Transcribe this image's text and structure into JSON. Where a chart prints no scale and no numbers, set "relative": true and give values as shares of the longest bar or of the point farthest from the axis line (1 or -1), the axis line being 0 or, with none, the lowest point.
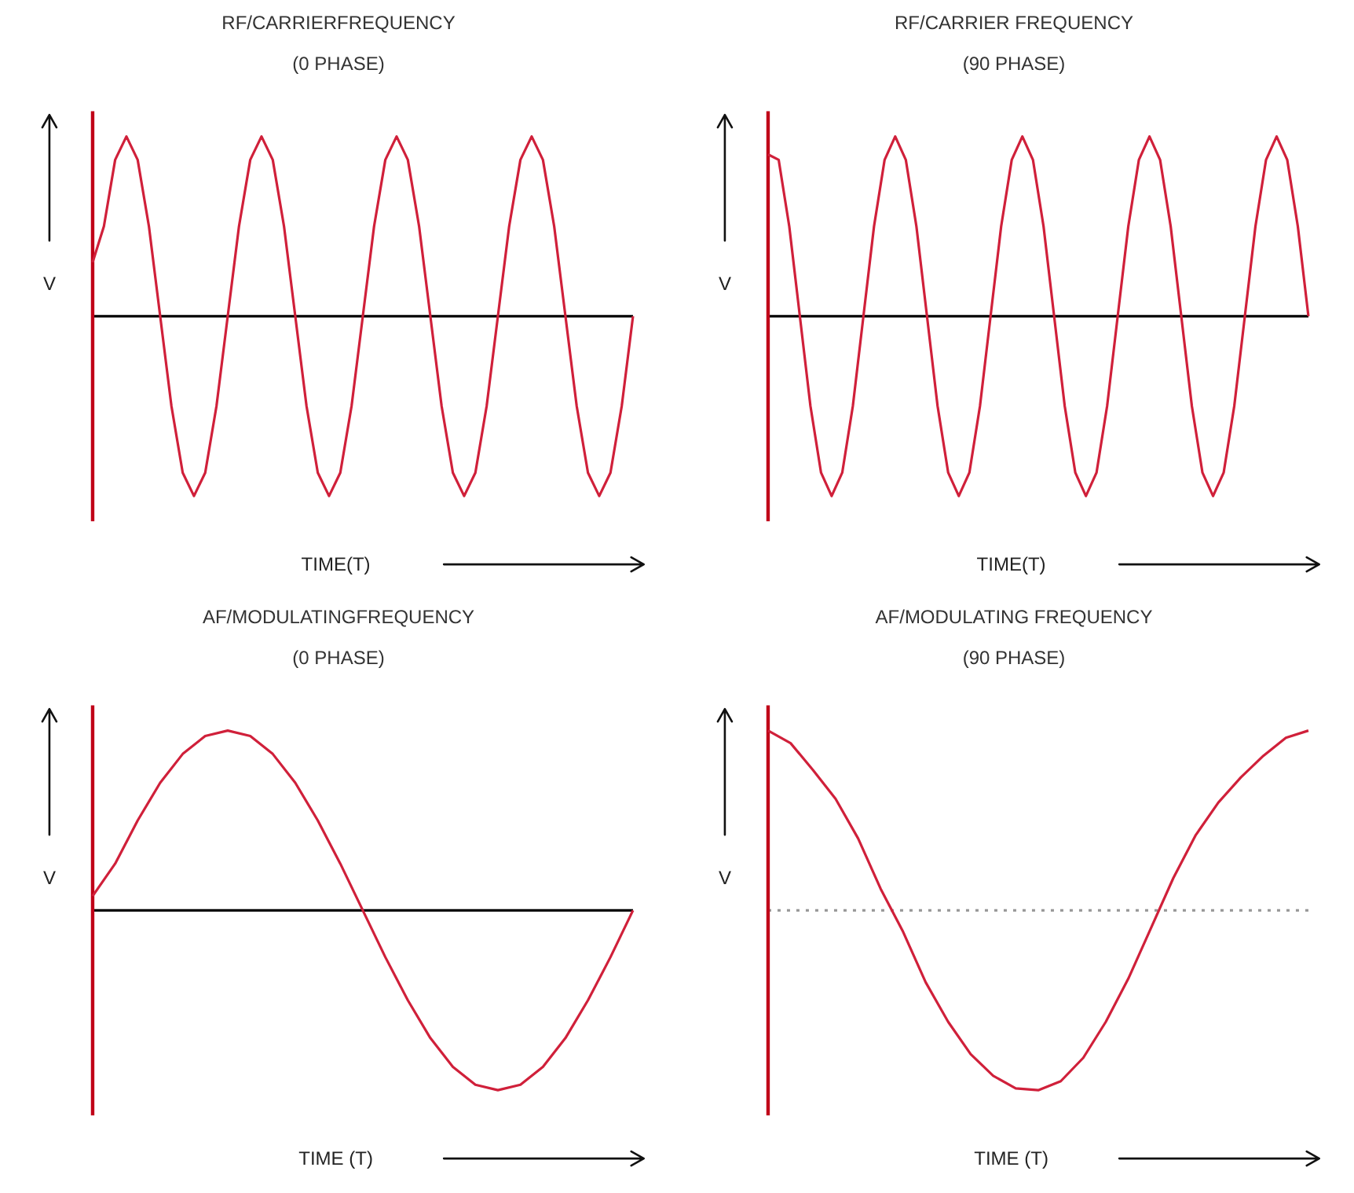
{
  "chart_data": [
    {
      "type": "line",
      "title": "RF/CARRIERFREQUENCY",
      "subtitle": "(0 PHASE)",
      "xlabel": "TIME(T)",
      "ylabel": "V",
      "relative": true,
      "categories": [
        null,
        null,
        null,
        null,
        null,
        null,
        null,
        null,
        null,
        null,
        null,
        null,
        null,
        null,
        null,
        null,
        null,
        null,
        null,
        null,
        null,
        null,
        null,
        null,
        null,
        null,
        null,
        null,
        null,
        null,
        null,
        null,
        null,
        null,
        null,
        null,
        null,
        null,
        null,
        null,
        null,
        null,
        null,
        null,
        null,
        null,
        null,
        null,
        null
      ],
      "color": "#d0203a",
      "values": [
        0.3,
        0.5,
        0.87,
        1,
        0.87,
        0.5,
        0,
        -0.5,
        -0.87,
        -1,
        -0.87,
        -0.5,
        0,
        0.5,
        0.87,
        1,
        0.87,
        0.5,
        0,
        -0.5,
        -0.87,
        -1,
        -0.87,
        -0.5,
        0,
        0.5,
        0.87,
        1,
        0.87,
        0.5,
        0,
        -0.5,
        -0.87,
        -1,
        -0.87,
        -0.5,
        0,
        0.5,
        0.87,
        1,
        0.87,
        0.5,
        0,
        -0.5,
        -0.87,
        -1,
        -0.87,
        -0.5,
        0
      ],
      "ref_lines": [
        {
          "axis": "y",
          "value": 0,
          "color": "#000000",
          "line_style": "solid"
        }
      ]
    },
    {
      "type": "line",
      "title": "RF/CARRIER FREQUENCY",
      "subtitle": "(90 PHASE)",
      "xlabel": "TIME(T)",
      "ylabel": "V",
      "relative": true,
      "categories": [
        null,
        null,
        null,
        null,
        null,
        null,
        null,
        null,
        null,
        null,
        null,
        null,
        null,
        null,
        null,
        null,
        null,
        null,
        null,
        null,
        null,
        null,
        null,
        null,
        null,
        null,
        null,
        null,
        null,
        null,
        null,
        null,
        null,
        null,
        null,
        null,
        null,
        null,
        null,
        null,
        null,
        null,
        null,
        null,
        null,
        null,
        null,
        null,
        null,
        null,
        null,
        null
      ],
      "color": "#d0203a",
      "values": [
        0.9,
        0.87,
        0.5,
        0,
        -0.5,
        -0.87,
        -1,
        -0.87,
        -0.5,
        0,
        0.5,
        0.87,
        1,
        0.87,
        0.5,
        0,
        -0.5,
        -0.87,
        -1,
        -0.87,
        -0.5,
        0,
        0.5,
        0.87,
        1,
        0.87,
        0.5,
        0,
        -0.5,
        -0.87,
        -1,
        -0.87,
        -0.5,
        0,
        0.5,
        0.87,
        1,
        0.87,
        0.5,
        0,
        -0.5,
        -0.87,
        -1,
        -0.87,
        -0.5,
        0,
        0.5,
        0.87,
        1,
        0.87,
        0.5,
        0
      ],
      "ref_lines": [
        {
          "axis": "y",
          "value": 0,
          "color": "#000000",
          "line_style": "solid"
        }
      ]
    },
    {
      "type": "line",
      "title": "AF/MODULATINGFREQUENCY",
      "subtitle": "(0 PHASE)",
      "xlabel": "TIME (T)",
      "ylabel": "V",
      "relative": true,
      "categories": [
        null,
        null,
        null,
        null,
        null,
        null,
        null,
        null,
        null,
        null,
        null,
        null,
        null,
        null,
        null,
        null,
        null,
        null,
        null,
        null,
        null,
        null,
        null,
        null,
        null
      ],
      "color": "#d0203a",
      "values": [
        0.08,
        0.26,
        0.5,
        0.71,
        0.87,
        0.97,
        1,
        0.97,
        0.87,
        0.71,
        0.5,
        0.26,
        0,
        -0.26,
        -0.5,
        -0.71,
        -0.87,
        -0.97,
        -1,
        -0.97,
        -0.87,
        -0.71,
        -0.5,
        -0.26,
        0
      ],
      "ref_lines": [
        {
          "axis": "y",
          "value": 0,
          "color": "#000000",
          "line_style": "solid"
        }
      ]
    },
    {
      "type": "line",
      "title": "AF/MODULATING FREQUENCY",
      "subtitle": "(90 PHASE)",
      "xlabel": "TIME (T)",
      "ylabel": "V",
      "relative": true,
      "categories": [
        null,
        null,
        null,
        null,
        null,
        null,
        null,
        null,
        null,
        null,
        null,
        null,
        null,
        null,
        null,
        null,
        null,
        null,
        null,
        null,
        null,
        null,
        null,
        null,
        null
      ],
      "color": "#d0203a",
      "values": [
        1,
        0.93,
        0.78,
        0.62,
        0.4,
        0.12,
        -0.12,
        -0.4,
        -0.62,
        -0.8,
        -0.92,
        -0.99,
        -1,
        -0.95,
        -0.82,
        -0.62,
        -0.38,
        -0.1,
        0.18,
        0.42,
        0.6,
        0.74,
        0.86,
        0.96,
        1
      ],
      "ref_lines": [
        {
          "axis": "y",
          "value": 0,
          "color": "#999999",
          "line_style": "dotted"
        }
      ]
    }
  ]
}
